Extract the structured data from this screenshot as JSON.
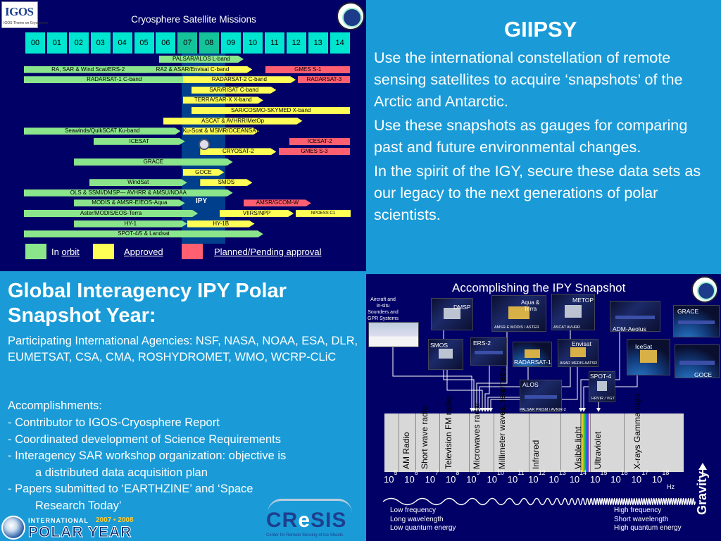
{
  "timeline": {
    "logo_text": "IGOS",
    "logo_sub": "IGOS Theme on Cryosphere",
    "title": "Cryosphere Satellite Missions",
    "years": [
      "00",
      "01",
      "02",
      "03",
      "04",
      "05",
      "06",
      "07",
      "08",
      "09",
      "10",
      "11",
      "12",
      "13",
      "14"
    ],
    "highlight_years": [
      "07",
      "08"
    ],
    "ipy_label": "IPY",
    "bars": [
      {
        "label": "PALSAR/ALOS L-band",
        "status": "orbit",
        "start": 6.2,
        "end": 10.1,
        "row": 0
      },
      {
        "label": "RA, SAR & Wind Scat/ERS-2",
        "status": "orbit",
        "start": 0,
        "end": 5.9,
        "row": 1
      },
      {
        "label": "RA2 & ASAR/Envisat C-band",
        "status": "orbit-approved",
        "start": 5.0,
        "end": 10.5,
        "row": 1
      },
      {
        "label": "GMES S-1",
        "status": "pending",
        "start": 11.1,
        "end": 15.0,
        "row": 1
      },
      {
        "label": "RADARSAT-1 C-band",
        "status": "orbit",
        "start": 0,
        "end": 8.3,
        "row": 2
      },
      {
        "label": "RADARSAT-2 C-band",
        "status": "approved",
        "start": 7.3,
        "end": 12.5,
        "row": 2
      },
      {
        "label": "RADARSAT-3",
        "status": "pending",
        "start": 12.6,
        "end": 15.0,
        "row": 2
      },
      {
        "label": "SAR/RISAT C-band",
        "status": "approved",
        "start": 7.7,
        "end": 11.6,
        "row": 3
      },
      {
        "label": "TERRA/SAR-X  X-band",
        "status": "approved",
        "start": 7.3,
        "end": 11.0,
        "row": 4
      },
      {
        "label": "SAR/COSMO-SKYMED X-band",
        "status": "approved",
        "start": 7.7,
        "end": 15.0,
        "row": 5
      },
      {
        "label": "ASCAT & AVHRR/MetOp",
        "status": "approved",
        "start": 6.4,
        "end": 12.8,
        "row": 6
      },
      {
        "label": "Seawinds/QuikSCAT  Ku-band",
        "status": "orbit",
        "start": 0,
        "end": 7.2,
        "row": 7
      },
      {
        "label": "Ku-Scat & MSMR/OCEANSAT-2",
        "status": "approved",
        "start": 7.3,
        "end": 10.8,
        "row": 7
      },
      {
        "label": "ICESAT",
        "status": "orbit",
        "start": 3.2,
        "end": 7.4,
        "row": 8
      },
      {
        "label": "ICESAT-2",
        "status": "pending",
        "start": 12.2,
        "end": 15.0,
        "row": 8
      },
      {
        "label": "CRYOSAT-2",
        "status": "approved",
        "start": 8.1,
        "end": 11.6,
        "row": 9
      },
      {
        "label": "GMES S-3",
        "status": "pending",
        "start": 11.7,
        "end": 15.0,
        "row": 9
      },
      {
        "label": "GRACE",
        "status": "orbit",
        "start": 2.3,
        "end": 9.6,
        "row": 10
      },
      {
        "label": "GOCE",
        "status": "approved",
        "start": 7.3,
        "end": 9.2,
        "row": 11
      },
      {
        "label": "WindSat",
        "status": "orbit",
        "start": 3.0,
        "end": 7.5,
        "row": 12
      },
      {
        "label": "SMOS",
        "status": "approved",
        "start": 8.1,
        "end": 10.5,
        "row": 12
      },
      {
        "label": "OLS & SSMI/DMSP— AVHRR & AMSU/NOAA",
        "status": "orbit",
        "start": 0,
        "end": 9.6,
        "row": 13
      },
      {
        "label": "MODIS & AMSR-E/EOS-Aqua",
        "status": "orbit",
        "start": 2.3,
        "end": 7.4,
        "row": 14
      },
      {
        "label": "AMSR/GCOM-W",
        "status": "pending",
        "start": 10.1,
        "end": 13.2,
        "row": 14
      },
      {
        "label": "Aster/MODIS/EOS-Terra",
        "status": "orbit",
        "start": 0,
        "end": 8.0,
        "row": 15
      },
      {
        "label": "VIIRS/NPP",
        "status": "approved",
        "start": 9.0,
        "end": 12.4,
        "row": 15
      },
      {
        "label": "NPOESS C1",
        "status": "approved",
        "start": 12.5,
        "end": 15.0,
        "row": 15
      },
      {
        "label": "HY-1",
        "status": "orbit",
        "start": 2.3,
        "end": 7.5,
        "row": 16
      },
      {
        "label": "HY-1B",
        "status": "approved",
        "start": 7.5,
        "end": 10.6,
        "row": 16
      },
      {
        "label": "SPOT-4/5 & Landsat",
        "status": "orbit",
        "start": 0,
        "end": 11.0,
        "row": 17
      }
    ],
    "legend": [
      {
        "status": "orbit",
        "prefix": "In ",
        "text": "orbit"
      },
      {
        "status": "approved",
        "prefix": "",
        "text": "Approved"
      },
      {
        "status": "pending",
        "prefix": "",
        "text": "Planned/Pending approval"
      }
    ],
    "colors": {
      "orbit": "#8be68b",
      "approved": "#ffff55",
      "pending": "#ff5f70"
    }
  },
  "giipsy": {
    "title": "GIIPSY",
    "paragraphs": [
      "Use the international constellation of remote sensing satellites to acquire ‘snapshots’ of the Arctic and Antarctic.",
      "Use these snapshots as gauges for comparing past and future environmental changes.",
      "In the spirit of the IGY, secure these data sets as our legacy to the next generations of polar scientists."
    ]
  },
  "global": {
    "title": "Global Interagency IPY Polar Snapshot Year:",
    "agencies": "Participating International Agencies:  NSF, NASA, NOAA, ESA, DLR, EUMETSAT, CSA, CMA, ROSHYDROMET, WMO, WCRP-CLiC",
    "accomplishments_head": "Accomplishments:",
    "accomplishments": [
      {
        "main": "-  Contributor to IGOS-Cryosphere Report",
        "cont": ""
      },
      {
        "main": "-  Coordinated development of Science Requirements",
        "cont": ""
      },
      {
        "main": "-  Interagency SAR workshop organization:  objective is",
        "cont": "a distributed data acquisition plan"
      },
      {
        "main": "-  Papers submitted to ‘EARTHZINE’ and ‘Space",
        "cont": "Research Today’"
      }
    ]
  },
  "logos": {
    "ipy_intl": "INTERNATIONAL",
    "ipy_years": "2007 • 2008",
    "ipy_polar": "POLAR YEAR",
    "cresis_c": "CR",
    "cresis_e": "e",
    "cresis_s": "SIS",
    "cresis_sub": "Center for Remote Sensing of Ice Sheets"
  },
  "snapshot": {
    "title": "Accomplishing the IPY Snapshot",
    "aircraft_label": "Aircraft and in-situ Sounders and GPR Systems",
    "sat_labels": {
      "dmsp": "DMSP",
      "aqua": "Aqua &\nTerra",
      "metop": "METOP",
      "grace": "GRACE",
      "smos": "SMOS",
      "ers2": "ERS-2",
      "radarsat": "RADARSAT-1",
      "envisat": "Envisat",
      "admaeolus": "ADM-Aeolus",
      "icesat": "IceSat",
      "goce": "GOCE",
      "alos": "ALOS",
      "spot4": "SPOT-4"
    },
    "sub_labels": {
      "aqua_sub": "AMSR-E    MODIS / ASTER",
      "metop_sub": "ASCAT     AVHRR",
      "envisat_sub": "ASAR  MERIS  AATSR",
      "spot_sub": "HRVIR / VGT",
      "alos_sub": "PALSAR   PRISM / AVNIR-2"
    },
    "spectrum_bands": [
      "AM Radio",
      "Short wave radio",
      "Television FM radio",
      "Microwaves radar",
      "Millimeter waves, telemetry",
      "Infrared",
      "Visible light",
      "Ultraviolet",
      "X-rays Gamma rays"
    ],
    "tick_base": "10",
    "tick_exponents": [
      "5",
      "6",
      "7",
      "8",
      "9",
      "10",
      "11",
      "12",
      "13",
      "14",
      "15",
      "16",
      "17",
      "18"
    ],
    "hz": "Hz",
    "low": [
      "Low frequency",
      "Long wavelength",
      "Low quantum energy"
    ],
    "high": [
      "High frequency",
      "Short wavelength",
      "High quantum energy"
    ],
    "gravity": "Gravity"
  }
}
